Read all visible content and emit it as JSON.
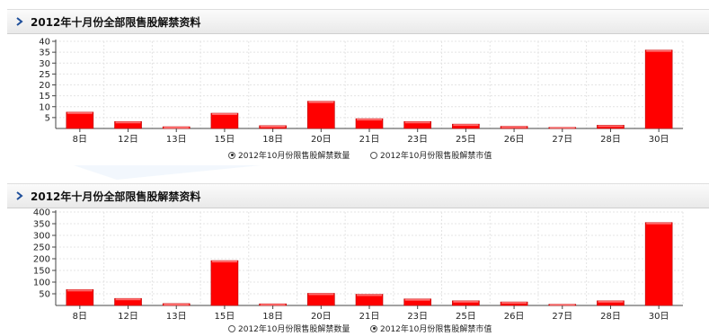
{
  "panels": [
    {
      "title": "2012年十月份全部限售股解禁资料",
      "legend": [
        {
          "label": "2012年10月份限售股解禁数量",
          "selected": true
        },
        {
          "label": "2012年10月份限售股解禁市值",
          "selected": false
        }
      ]
    },
    {
      "title": "2012年十月份全部限售股解禁资料",
      "legend": [
        {
          "label": "2012年10月份限售股解禁数量",
          "selected": false
        },
        {
          "label": "2012年10月份限售股解禁市值",
          "selected": true
        }
      ]
    }
  ],
  "colors": {
    "bar": "#ff0000",
    "bar_top": "#ff6a6a",
    "bar_dark": "#b80000",
    "axis": "#444444",
    "grid": "#e4e4e4"
  },
  "chart_data": [
    {
      "type": "bar",
      "categories": [
        "8日",
        "12日",
        "13日",
        "15日",
        "18日",
        "20日",
        "21日",
        "23日",
        "25日",
        "26日",
        "27日",
        "28日",
        "30日"
      ],
      "values": [
        7.5,
        3.2,
        0.8,
        7,
        1.3,
        12.5,
        4.5,
        3.2,
        2,
        1,
        0.5,
        1.5,
        36
      ],
      "ylim": [
        0,
        40
      ],
      "yticks": [
        5,
        10,
        15,
        20,
        25,
        30,
        35,
        40
      ],
      "title": "",
      "xlabel": "",
      "ylabel": ""
    },
    {
      "type": "bar",
      "categories": [
        "8日",
        "12日",
        "13日",
        "15日",
        "18日",
        "20日",
        "21日",
        "23日",
        "25日",
        "26日",
        "27日",
        "28日",
        "30日"
      ],
      "values": [
        68,
        30,
        8,
        192,
        7,
        52,
        48,
        28,
        20,
        15,
        5,
        20,
        355
      ],
      "ylim": [
        0,
        400
      ],
      "yticks": [
        50,
        100,
        150,
        200,
        250,
        300,
        350,
        400
      ],
      "title": "",
      "xlabel": "",
      "ylabel": ""
    }
  ]
}
